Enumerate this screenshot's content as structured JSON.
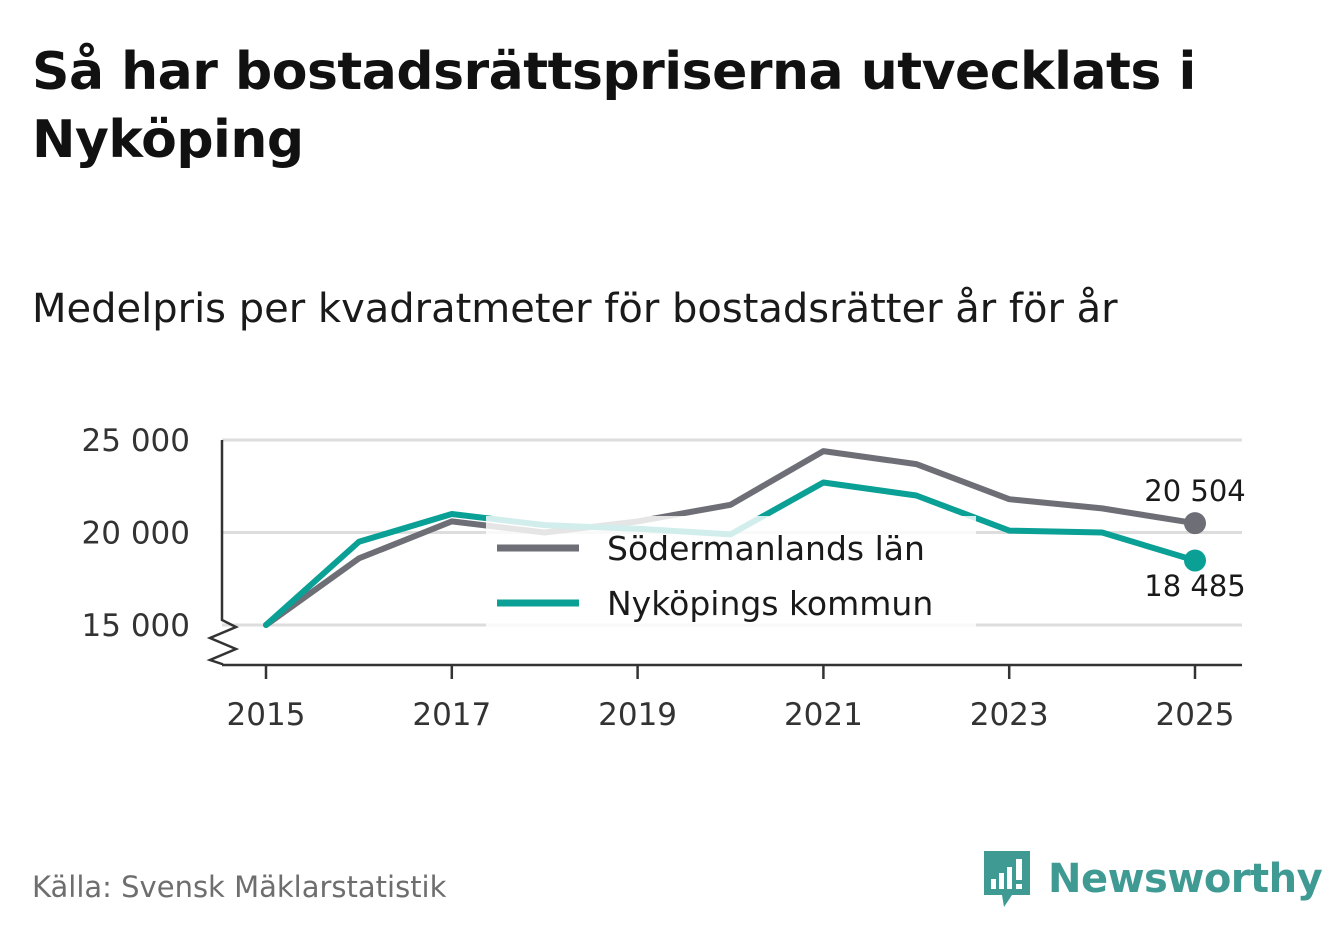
{
  "title": "Så har bostadsrättspriserna utvecklats i Nyköping",
  "subtitle": "Medelpris per kvadratmeter för bostadsrätter år för år",
  "source": "Källa: Svensk Mäklarstatistik",
  "brand": "Newsworthy",
  "colors": {
    "lan": "#6e6e76",
    "kommun": "#0aa096",
    "grid": "#dddddd",
    "axis": "#333333",
    "brand": "#3e9a92"
  },
  "chart_data": {
    "type": "line",
    "title": "Medelpris per kvadratmeter för bostadsrätter år för år",
    "x": [
      2015,
      2016,
      2017,
      2018,
      2019,
      2020,
      2021,
      2022,
      2023,
      2024,
      2025
    ],
    "ylim": [
      15000,
      25000
    ],
    "axis_floor": 13000,
    "y_ticks": [
      15000,
      20000,
      25000
    ],
    "y_tick_labels": [
      "15 000",
      "20 000",
      "25 000"
    ],
    "x_ticks": [
      2015,
      2017,
      2019,
      2021,
      2023,
      2025
    ],
    "x_tick_labels": [
      "2015",
      "2017",
      "2019",
      "2021",
      "2023",
      "2025"
    ],
    "grid": true,
    "legend_position": "center",
    "series": [
      {
        "name": "Södermanlands län",
        "color": "#6e6e76",
        "values": [
          15000,
          18600,
          20600,
          20000,
          20600,
          21500,
          24400,
          23700,
          21800,
          21300,
          20504
        ],
        "end_label": "20 504"
      },
      {
        "name": "Nyköpings kommun",
        "color": "#0aa096",
        "values": [
          15000,
          19500,
          21000,
          20400,
          20200,
          19900,
          22700,
          22000,
          20100,
          20000,
          18485
        ],
        "end_label": "18 485"
      }
    ]
  }
}
